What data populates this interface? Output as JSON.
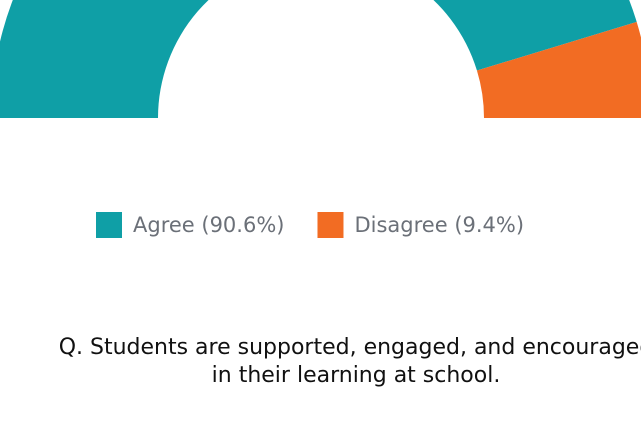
{
  "chart_data": {
    "type": "half-donut",
    "values": [
      90.6,
      9.4
    ],
    "value_labels": [
      "Agree (90.6%)",
      "Disagree (9.4%)"
    ],
    "colors": [
      "#0f9fa6",
      "#f26c23"
    ],
    "title": [
      "Q. Students are supported, engaged, and encouraged",
      "in their learning at school."
    ]
  }
}
